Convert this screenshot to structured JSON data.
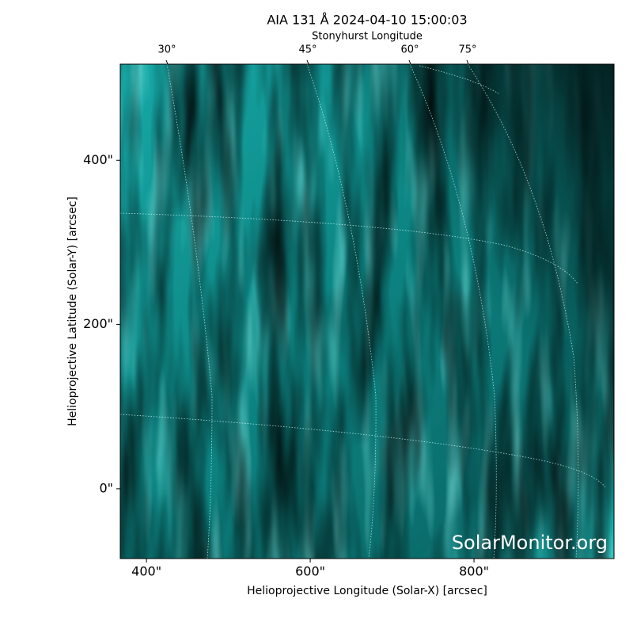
{
  "chart_data": {
    "type": "image",
    "title": "AIA 131 Å 2024-04-10 15:00:03",
    "top_axis_label": "Stonyhurst Longitude",
    "top_ticks": [
      "30°",
      "45°",
      "60°",
      "75°"
    ],
    "xlabel": "Helioprojective Longitude (Solar-X) [arcsec]",
    "ylabel": "Helioprojective Latitude (Solar-Y) [arcsec]",
    "xlim": [
      368,
      971
    ],
    "ylim": [
      -85,
      517
    ],
    "xticks": [
      {
        "value": 400,
        "label": "400\""
      },
      {
        "value": 600,
        "label": "600\""
      },
      {
        "value": 800,
        "label": "800\""
      }
    ],
    "yticks": [
      {
        "value": 0,
        "label": "0\""
      },
      {
        "value": 200,
        "label": "200\""
      },
      {
        "value": 400,
        "label": "400\""
      }
    ],
    "watermark": "SolarMonitor.org"
  }
}
